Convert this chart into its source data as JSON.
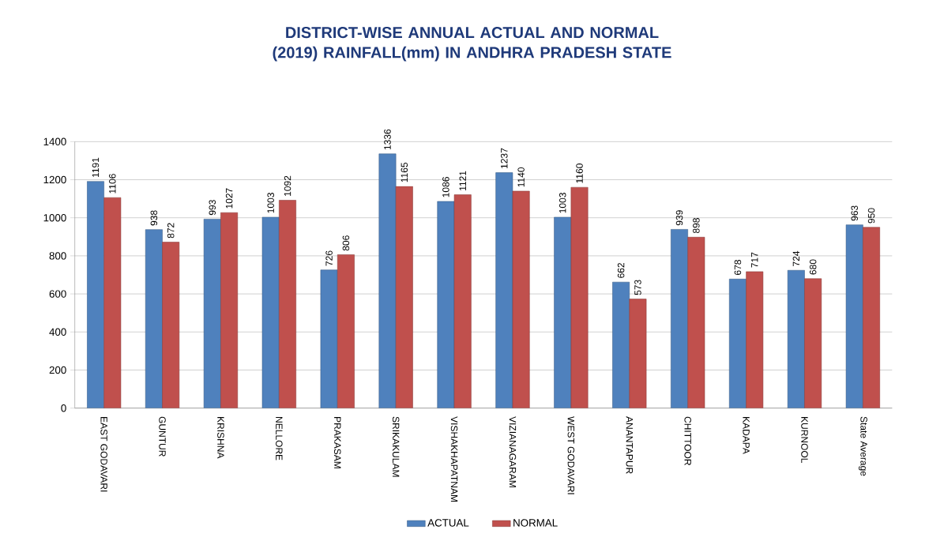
{
  "chart_data": {
    "type": "bar",
    "title": "DISTRICT-WISE ANNUAL ACTUAL AND NORMAL (2019) RAINFALL(mm) IN ANDHRA PRADESH STATE",
    "categories": [
      "EAST GODAVARI",
      "GUNTUR",
      "KRISHNA",
      "NELLORE",
      "PRAKASAM",
      "SRIKAKULAM",
      "VISHAKHAPATNAM",
      "VIZIANAGARAM",
      "WEST GODAVARI",
      "ANANTAPUR",
      "CHITTOOR",
      "KADAPA",
      "KURNOOL",
      "State Average"
    ],
    "series": [
      {
        "name": "ACTUAL",
        "color": "#4f81bd",
        "values": [
          1191,
          938,
          993,
          1003,
          726,
          1336,
          1086,
          1237,
          1003,
          662,
          939,
          678,
          724,
          963
        ]
      },
      {
        "name": "NORMAL",
        "color": "#c0504d",
        "values": [
          1106,
          872,
          1027,
          1092,
          806,
          1165,
          1121,
          1140,
          1160,
          573,
          898,
          717,
          680,
          950
        ]
      }
    ],
    "ylim": [
      0,
      1400
    ],
    "yticks": [
      0,
      200,
      400,
      600,
      800,
      1000,
      1200,
      1400
    ],
    "grid": "y",
    "legend": "bottom",
    "data_labels": true
  }
}
